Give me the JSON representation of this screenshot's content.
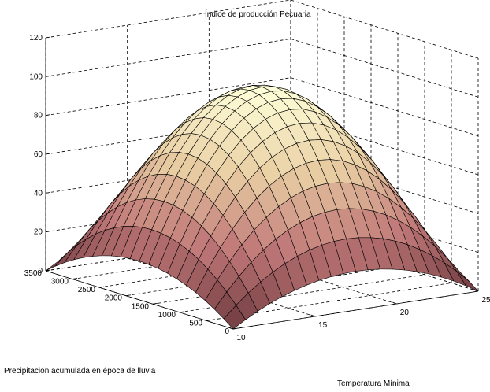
{
  "chart_data": {
    "type": "surface",
    "title": "Índice de producción Pecuaria",
    "xlabel": "Temperatura Mínima",
    "ylabel": "Precipitación acumulada en época de lluvia",
    "zlabel": "",
    "xlim": [
      10,
      25
    ],
    "ylim": [
      0,
      3500
    ],
    "zlim": [
      0,
      120
    ],
    "x_ticks": [
      "10",
      "15",
      "20",
      "25"
    ],
    "y_ticks": [
      "0",
      "500",
      "1000",
      "1500",
      "2000",
      "2500",
      "3000",
      "3500"
    ],
    "z_ticks": [
      "0",
      "20",
      "40",
      "60",
      "80",
      "100",
      "120"
    ],
    "grid": true,
    "surface": {
      "grid_size": 21,
      "peak_value": 100,
      "peak_at": {
        "x": 17.5,
        "y": 1750
      },
      "corner_values": {
        "x10_y0": 0,
        "x10_y3500": 0,
        "x25_y0": 0,
        "x25_y3500": 0
      },
      "colormap": [
        "#6e3a3e",
        "#c07878",
        "#e9cfa4",
        "#fefed8"
      ]
    }
  }
}
